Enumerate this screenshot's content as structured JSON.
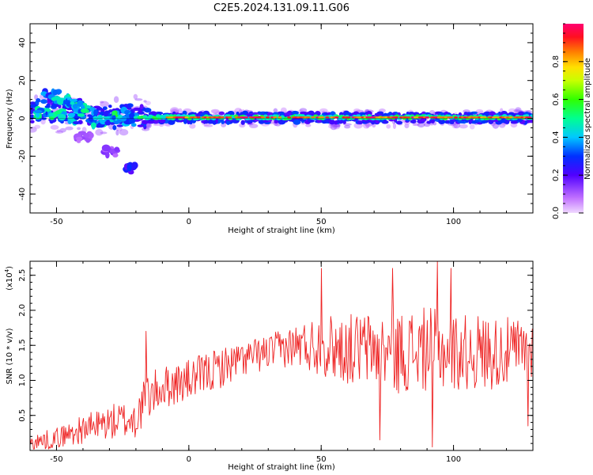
{
  "title": "C2E5.2024.131.09.11.G06",
  "colorbar": {
    "label": "Normalized spectral amplitude",
    "ticks": [
      "0.0",
      "0.2",
      "0.4",
      "0.6",
      "0.8"
    ],
    "tick_values": [
      0.0,
      0.2,
      0.4,
      0.6,
      0.8
    ],
    "range": [
      0,
      1
    ],
    "colors": [
      "#e0b0ff",
      "#9b30ff",
      "#3050ff",
      "#00e5ff",
      "#00ff80",
      "#40ff00",
      "#ffff00",
      "#ff8000",
      "#ff0030",
      "#ff0080"
    ]
  },
  "chart_data": [
    {
      "type": "heatmap",
      "name": "spectrogram",
      "xlabel": "Height of straight line (km)",
      "ylabel": "Frequency (Hz)",
      "xlim": [
        -60,
        130
      ],
      "ylim": [
        -50,
        50
      ],
      "xticks": [
        -50,
        0,
        50,
        100
      ],
      "xtick_labels": [
        "-50",
        "0",
        "50",
        "100"
      ],
      "yticks": [
        -40,
        -20,
        0,
        20,
        40
      ],
      "ytick_labels": [
        "-40",
        "-20",
        "0",
        "20",
        "40"
      ],
      "description_values": {
        "band_center_hz": 0,
        "band_halfwidth_hz_near_field": 8,
        "band_halfwidth_hz_far_field": 3
      },
      "blobs": [
        {
          "x": -52,
          "y": 12,
          "a": 0.35
        },
        {
          "x": -48,
          "y": 10,
          "a": 0.4
        },
        {
          "x": -45,
          "y": 8,
          "a": 0.38
        },
        {
          "x": -40,
          "y": 6,
          "a": 0.42
        },
        {
          "x": -55,
          "y": 3,
          "a": 0.4
        },
        {
          "x": -50,
          "y": 2,
          "a": 0.45
        },
        {
          "x": -45,
          "y": 0,
          "a": 0.35
        },
        {
          "x": -38,
          "y": 3,
          "a": 0.4
        },
        {
          "x": -35,
          "y": -2,
          "a": 0.38
        },
        {
          "x": -30,
          "y": 0,
          "a": 0.35
        },
        {
          "x": -26,
          "y": 2,
          "a": 0.45
        },
        {
          "x": -22,
          "y": -1,
          "a": 0.35
        },
        {
          "x": -21,
          "y": -26,
          "a": 0.25
        },
        {
          "x": -40,
          "y": -10,
          "a": 0.1
        },
        {
          "x": -30,
          "y": -18,
          "a": 0.12
        }
      ]
    },
    {
      "type": "line",
      "name": "snr",
      "xlabel": "Height of straight line (km)",
      "ylabel": "SNR (10 * v/v)",
      "y_multiplier_label": "(x10",
      "y_multiplier_exp": "4",
      "y_multiplier_close": ")",
      "xlim": [
        -60,
        130
      ],
      "ylim": [
        0,
        2.7
      ],
      "xticks": [
        -50,
        0,
        50,
        100
      ],
      "xtick_labels": [
        "-50",
        "0",
        "50",
        "100"
      ],
      "yticks": [
        0.5,
        1.0,
        1.5,
        2.0,
        2.5
      ],
      "ytick_labels": [
        "0.5",
        "1.0",
        "1.5",
        "2.0",
        "2.5"
      ],
      "color": "#ee2222",
      "trend": {
        "x": [
          -60,
          -50,
          -40,
          -30,
          -20,
          -16,
          -10,
          0,
          10,
          20,
          30,
          40,
          50,
          60,
          70,
          80,
          90,
          100,
          110,
          120,
          130
        ],
        "y": [
          0.1,
          0.18,
          0.3,
          0.4,
          0.45,
          0.75,
          0.9,
          1.0,
          1.15,
          1.3,
          1.4,
          1.5,
          1.5,
          1.45,
          1.45,
          1.4,
          1.45,
          1.4,
          1.4,
          1.4,
          1.45
        ],
        "noise": [
          0.12,
          0.15,
          0.2,
          0.25,
          0.3,
          0.35,
          0.3,
          0.3,
          0.3,
          0.25,
          0.25,
          0.3,
          0.45,
          0.5,
          0.55,
          0.6,
          0.6,
          0.55,
          0.55,
          0.5,
          0.45
        ]
      },
      "peaks": [
        {
          "x": -16,
          "y": 1.7
        },
        {
          "x": 50,
          "y": 2.6
        },
        {
          "x": 77,
          "y": 2.6
        },
        {
          "x": 94,
          "y": 2.7
        },
        {
          "x": 99,
          "y": 2.6
        },
        {
          "x": 72,
          "y": 0.15
        },
        {
          "x": 92,
          "y": 0.05
        },
        {
          "x": 128,
          "y": 0.35
        }
      ]
    }
  ]
}
